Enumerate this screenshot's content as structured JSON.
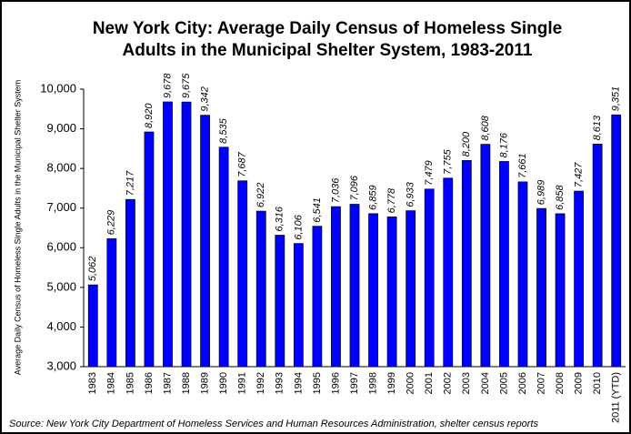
{
  "chart_data": {
    "type": "bar",
    "title": [
      "New York City:  Average Daily Census of Homeless Single",
      "Adults in the Municipal Shelter System, 1983-2011"
    ],
    "y_axis_label": "Average Daily Census of Homeless Single Adults in the Municipal Shelter System",
    "source": "Source:  New York City Department of Homeless Services and Human Resources Administration, shelter census reports",
    "categories": [
      "1983",
      "1984",
      "1985",
      "1986",
      "1987",
      "1988",
      "1989",
      "1990",
      "1991",
      "1992",
      "1993",
      "1994",
      "1995",
      "1996",
      "1997",
      "1998",
      "1999",
      "2000",
      "2001",
      "2002",
      "2003",
      "2004",
      "2005",
      "2006",
      "2007",
      "2008",
      "2009",
      "2010",
      "2011 (YTD)"
    ],
    "values": [
      5062,
      6229,
      7217,
      8920,
      9678,
      9675,
      9342,
      8535,
      7687,
      6922,
      6316,
      6106,
      6541,
      7036,
      7096,
      6859,
      6778,
      6933,
      7479,
      7755,
      8200,
      8608,
      8176,
      7661,
      6989,
      6858,
      7427,
      8613,
      9351
    ],
    "value_labels": [
      "5,062",
      "6,229",
      "7,217",
      "8,920",
      "9,678",
      "9,675",
      "9,342",
      "8,535",
      "7,687",
      "6,922",
      "6,316",
      "6,106",
      "6,541",
      "7,036",
      "7,096",
      "6,859",
      "6,778",
      "6,933",
      "7,479",
      "7,755",
      "8,200",
      "8,608",
      "8,176",
      "7,661",
      "6,989",
      "6,858",
      "7,427",
      "8,613",
      "9,351"
    ],
    "color": "#0000ff",
    "ylim": [
      3000,
      10000
    ],
    "yticks": [
      {
        "value": 3000,
        "label": "3,000"
      },
      {
        "value": 4000,
        "label": "4,000"
      },
      {
        "value": 5000,
        "label": "5,000"
      },
      {
        "value": 6000,
        "label": "6,000"
      },
      {
        "value": 7000,
        "label": "7,000"
      },
      {
        "value": 8000,
        "label": "8,000"
      },
      {
        "value": 9000,
        "label": "9,000"
      },
      {
        "value": 10000,
        "label": "10,000"
      }
    ],
    "grid": false
  }
}
